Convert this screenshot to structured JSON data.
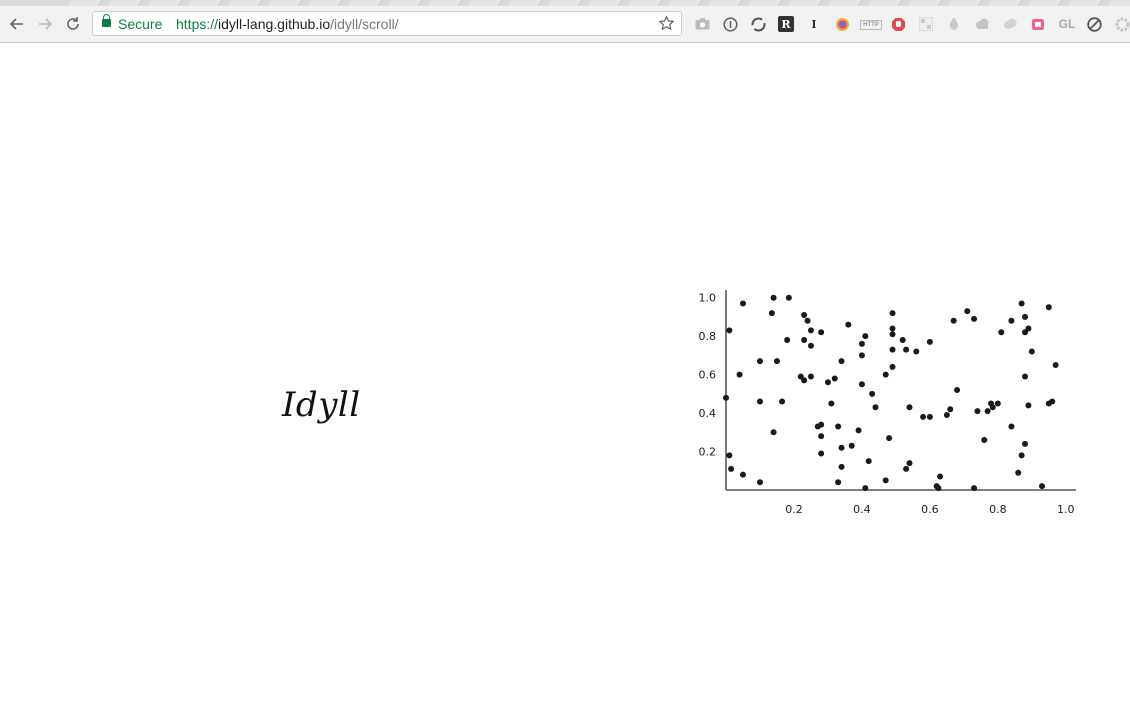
{
  "browser": {
    "secure_label": "Secure",
    "url_scheme": "https://",
    "url_host": "idyll-lang.github.io",
    "url_path": "/idyll/scroll/",
    "extension_icons": [
      "camera-icon",
      "info-icon",
      "sync-icon",
      "r-extension-icon",
      "i-extension-icon",
      "color-wheel-icon",
      "http-icon",
      "stop-hand-icon",
      "grid-icon",
      "bug-icon",
      "cloud-icon",
      "cloud-alt-icon",
      "pink-square-icon",
      "gl-icon",
      "no-symbol-icon",
      "settings-icon"
    ],
    "r_label": "R",
    "i_label": "I",
    "http_label": "HTTP",
    "gl_label": "GL"
  },
  "page": {
    "title": "Idyll"
  },
  "chart_data": {
    "type": "scatter",
    "xlim": [
      0,
      1.03
    ],
    "ylim": [
      0,
      1.04
    ],
    "x_ticks": [
      "0.2",
      "0.4",
      "0.6",
      "0.8",
      "1.0"
    ],
    "y_ticks": [
      "0.2",
      "0.4",
      "0.6",
      "0.8",
      "1.0"
    ],
    "points": [
      [
        0.01,
        0.83
      ],
      [
        0.05,
        0.97
      ],
      [
        0.14,
        1.0
      ],
      [
        0.185,
        1.0
      ],
      [
        0.135,
        0.92
      ],
      [
        0.23,
        0.91
      ],
      [
        0.24,
        0.88
      ],
      [
        0.25,
        0.83
      ],
      [
        0.28,
        0.82
      ],
      [
        0.23,
        0.78
      ],
      [
        0.25,
        0.75
      ],
      [
        0.18,
        0.78
      ],
      [
        0.36,
        0.86
      ],
      [
        0.4,
        0.76
      ],
      [
        0.41,
        0.8
      ],
      [
        0.49,
        0.92
      ],
      [
        0.49,
        0.84
      ],
      [
        0.49,
        0.81
      ],
      [
        0.49,
        0.73
      ],
      [
        0.52,
        0.78
      ],
      [
        0.53,
        0.73
      ],
      [
        0.56,
        0.72
      ],
      [
        0.6,
        0.77
      ],
      [
        0.67,
        0.88
      ],
      [
        0.71,
        0.93
      ],
      [
        0.73,
        0.89
      ],
      [
        0.81,
        0.82
      ],
      [
        0.84,
        0.88
      ],
      [
        0.87,
        0.97
      ],
      [
        0.88,
        0.9
      ],
      [
        0.89,
        0.84
      ],
      [
        0.9,
        0.72
      ],
      [
        0.88,
        0.82
      ],
      [
        0.95,
        0.95
      ],
      [
        0.97,
        0.65
      ],
      [
        0.1,
        0.67
      ],
      [
        0.15,
        0.67
      ],
      [
        0.04,
        0.6
      ],
      [
        0.22,
        0.59
      ],
      [
        0.23,
        0.57
      ],
      [
        0.25,
        0.59
      ],
      [
        0.3,
        0.56
      ],
      [
        0.32,
        0.58
      ],
      [
        0.34,
        0.67
      ],
      [
        0.4,
        0.7
      ],
      [
        0.47,
        0.6
      ],
      [
        0.49,
        0.64
      ],
      [
        0.4,
        0.55
      ],
      [
        0.43,
        0.5
      ],
      [
        0.68,
        0.52
      ],
      [
        0.88,
        0.59
      ],
      [
        0.0,
        0.48
      ],
      [
        0.1,
        0.46
      ],
      [
        0.165,
        0.46
      ],
      [
        0.31,
        0.45
      ],
      [
        0.44,
        0.43
      ],
      [
        0.54,
        0.43
      ],
      [
        0.58,
        0.38
      ],
      [
        0.6,
        0.38
      ],
      [
        0.65,
        0.39
      ],
      [
        0.66,
        0.42
      ],
      [
        0.74,
        0.41
      ],
      [
        0.77,
        0.41
      ],
      [
        0.78,
        0.45
      ],
      [
        0.785,
        0.43
      ],
      [
        0.8,
        0.45
      ],
      [
        0.89,
        0.44
      ],
      [
        0.95,
        0.45
      ],
      [
        0.96,
        0.46
      ],
      [
        0.14,
        0.3
      ],
      [
        0.27,
        0.33
      ],
      [
        0.28,
        0.34
      ],
      [
        0.28,
        0.28
      ],
      [
        0.33,
        0.33
      ],
      [
        0.39,
        0.31
      ],
      [
        0.37,
        0.23
      ],
      [
        0.34,
        0.22
      ],
      [
        0.48,
        0.27
      ],
      [
        0.76,
        0.26
      ],
      [
        0.84,
        0.33
      ],
      [
        0.88,
        0.24
      ],
      [
        0.87,
        0.18
      ],
      [
        0.01,
        0.18
      ],
      [
        0.015,
        0.11
      ],
      [
        0.05,
        0.08
      ],
      [
        0.1,
        0.04
      ],
      [
        0.28,
        0.19
      ],
      [
        0.34,
        0.12
      ],
      [
        0.33,
        0.04
      ],
      [
        0.41,
        0.01
      ],
      [
        0.42,
        0.15
      ],
      [
        0.47,
        0.05
      ],
      [
        0.53,
        0.11
      ],
      [
        0.54,
        0.14
      ],
      [
        0.62,
        0.02
      ],
      [
        0.625,
        0.01
      ],
      [
        0.63,
        0.07
      ],
      [
        0.73,
        0.01
      ],
      [
        0.86,
        0.09
      ],
      [
        0.93,
        0.02
      ]
    ]
  }
}
